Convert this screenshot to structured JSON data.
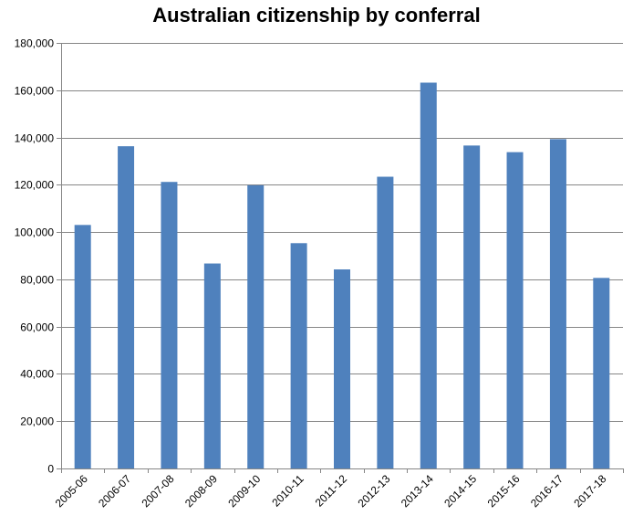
{
  "chart_data": {
    "type": "bar",
    "title": "Australian citizenship by conferral",
    "xlabel": "",
    "ylabel": "",
    "categories": [
      "2005-06",
      "2006-07",
      "2007-08",
      "2008-09",
      "2009-10",
      "2010-11",
      "2011-12",
      "2012-13",
      "2013-14",
      "2014-15",
      "2015-16",
      "2016-17",
      "2017-18"
    ],
    "values": [
      103000,
      136300,
      121200,
      86700,
      119800,
      95300,
      84200,
      123400,
      163200,
      136600,
      133800,
      139300,
      80600
    ],
    "ylim": [
      0,
      180000
    ],
    "yticks": [
      0,
      20000,
      40000,
      60000,
      80000,
      100000,
      120000,
      140000,
      160000,
      180000
    ],
    "ytick_labels": [
      "0",
      "20,000",
      "40,000",
      "60,000",
      "80,000",
      "100,000",
      "120,000",
      "140,000",
      "160,000",
      "180,000"
    ],
    "grid": true,
    "legend": "none",
    "colors": {
      "bar": "#4f81bd",
      "grid": "#868686",
      "axis": "#868686",
      "text": "#000000"
    }
  }
}
